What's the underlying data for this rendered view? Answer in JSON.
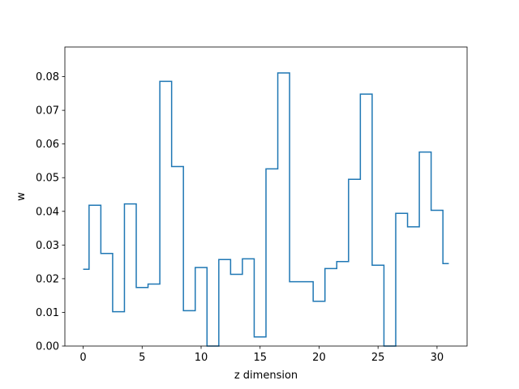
{
  "chart_data": {
    "type": "line",
    "style": "step",
    "title": "",
    "xlabel": "z dimension",
    "ylabel": "w",
    "xlim": [
      -1.55,
      32.55
    ],
    "ylim": [
      0.0,
      0.0888
    ],
    "xticks": [
      0,
      5,
      10,
      15,
      20,
      25,
      30
    ],
    "yticks": [
      0.0,
      0.01,
      0.02,
      0.03,
      0.04,
      0.05,
      0.06,
      0.07,
      0.08
    ],
    "grid": false,
    "legend": false,
    "series": [
      {
        "color": "#1f77b4",
        "x": [
          0,
          1,
          2,
          3,
          4,
          5,
          6,
          7,
          8,
          9,
          10,
          11,
          12,
          13,
          14,
          15,
          16,
          17,
          18,
          19,
          20,
          21,
          22,
          23,
          24,
          25,
          26,
          27,
          28,
          29,
          30,
          31
        ],
        "values": [
          0.0228,
          0.0418,
          0.0275,
          0.0102,
          0.0422,
          0.0174,
          0.0184,
          0.0786,
          0.0533,
          0.0105,
          0.0233,
          0.0,
          0.0257,
          0.0213,
          0.0259,
          0.0027,
          0.0526,
          0.0811,
          0.0191,
          0.0191,
          0.0133,
          0.023,
          0.0251,
          0.0495,
          0.0748,
          0.024,
          0.0,
          0.0394,
          0.0354,
          0.0576,
          0.0403,
          0.0245
        ]
      }
    ]
  }
}
